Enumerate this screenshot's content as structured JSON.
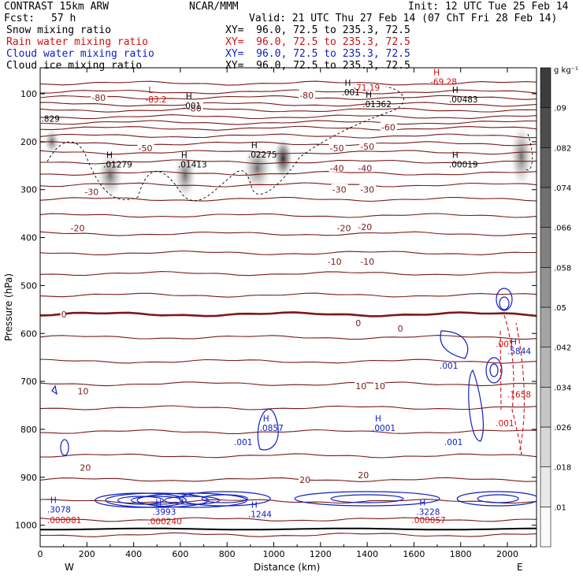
{
  "header": {
    "model": "CONTRAST 15km ARW",
    "fcst_label": "Fcst:",
    "fcst_value": "57 h",
    "org": "NCAR/MMM",
    "init": "Init: 12 UTC Tue 25 Feb 14",
    "valid": "Valid: 21 UTC Thu 27 Feb 14 (07 ChT Fri 28 Feb 14)"
  },
  "fields": [
    {
      "name": "Snow mixing ratio",
      "xy": "XY=  96.0, 72.5 to 235.3, 72.5",
      "color": "#000000"
    },
    {
      "name": "Rain water mixing ratio",
      "xy": "XY=  96.0, 72.5 to 235.3, 72.5",
      "color": "#d01010"
    },
    {
      "name": "Cloud water mixing ratio",
      "xy": "XY=  96.0, 72.5 to 235.3, 72.5",
      "color": "#1020c0"
    },
    {
      "name": "Cloud ice mixing ratio",
      "xy": "XY=  96.0, 72.5 to 235.3, 72.5",
      "color": "#000000"
    }
  ],
  "colors": {
    "temperature": "#7a1a1a",
    "rain": "#d01010",
    "cloud_water": "#1020c0",
    "ice": "#000000"
  },
  "chart_data": {
    "type": "heatmap",
    "xlabel": "Distance (km)",
    "ylabel": "Pressure (hPa)",
    "xlim": [
      0,
      2100
    ],
    "ylim": [
      1050,
      50
    ],
    "x_ticks": [
      0,
      200,
      400,
      600,
      800,
      1000,
      1200,
      1400,
      1600,
      1800,
      2000
    ],
    "y_ticks": [
      100,
      200,
      300,
      400,
      500,
      600,
      700,
      800,
      900,
      1000
    ],
    "x_end_labels": {
      "left": "W",
      "right": "E"
    },
    "colorbar": {
      "unit": "g kg⁻¹",
      "levels": [
        0.01,
        0.018,
        0.026,
        0.034,
        0.042,
        0.05,
        0.058,
        0.066,
        0.074,
        0.082,
        0.09
      ],
      "labels": [
        ".01",
        ".018",
        ".026",
        ".034",
        ".042",
        ".05",
        ".058",
        ".066",
        ".074",
        ".082",
        ".09"
      ]
    },
    "temperature_contours": [
      {
        "value": -80,
        "label": "-80",
        "x": 220,
        "p": 108
      },
      {
        "value": -80,
        "label": "-80",
        "x": 630,
        "p": 130
      },
      {
        "value": -80,
        "label": "-80",
        "x": 1110,
        "p": 103
      },
      {
        "value": -60,
        "label": "-60",
        "x": 1460,
        "p": 170
      },
      {
        "value": -50,
        "label": "-50",
        "x": 420,
        "p": 213
      },
      {
        "value": -50,
        "label": "-50",
        "x": 1240,
        "p": 213
      },
      {
        "value": -50,
        "label": "-50",
        "x": 1370,
        "p": 210
      },
      {
        "value": -40,
        "label": "-40",
        "x": 1240,
        "p": 255
      },
      {
        "value": -40,
        "label": "-40",
        "x": 1360,
        "p": 255
      },
      {
        "value": -30,
        "label": "-30",
        "x": 190,
        "p": 305
      },
      {
        "value": -30,
        "label": "-30",
        "x": 1250,
        "p": 300
      },
      {
        "value": -30,
        "label": "-30",
        "x": 1370,
        "p": 300
      },
      {
        "value": -20,
        "label": "-20",
        "x": 130,
        "p": 380
      },
      {
        "value": -20,
        "label": "-20",
        "x": 1270,
        "p": 380
      },
      {
        "value": -20,
        "label": "-20",
        "x": 1360,
        "p": 378
      },
      {
        "value": -10,
        "label": "-10",
        "x": 1230,
        "p": 450
      },
      {
        "value": -10,
        "label": "-10",
        "x": 1370,
        "p": 450
      },
      {
        "value": 0,
        "label": "0",
        "x": 90,
        "p": 560
      },
      {
        "value": 0,
        "label": "0",
        "x": 1350,
        "p": 578
      },
      {
        "value": 0,
        "label": "0",
        "x": 1530,
        "p": 590
      },
      {
        "value": 10,
        "label": "10",
        "x": 160,
        "p": 720
      },
      {
        "value": 10,
        "label": "10",
        "x": 1350,
        "p": 710
      },
      {
        "value": 10,
        "label": "10",
        "x": 1430,
        "p": 710
      },
      {
        "value": 20,
        "label": "20",
        "x": 170,
        "p": 880
      },
      {
        "value": 20,
        "label": "20",
        "x": 1110,
        "p": 905
      },
      {
        "value": 20,
        "label": "20",
        "x": 1360,
        "p": 895
      }
    ],
    "temperature_lines_p": [
      78,
      96,
      108,
      122,
      134,
      148,
      160,
      172,
      188,
      204,
      222,
      242,
      266,
      290,
      320,
      354,
      392,
      432,
      475,
      520,
      560,
      608,
      658,
      705,
      755,
      805,
      855,
      905,
      950,
      988,
      1020
    ],
    "highs_lows": [
      {
        "kind": "L",
        "value": "-83.2",
        "x": 450,
        "p": 115,
        "color": "#d01010"
      },
      {
        "kind": "",
        "value": "-71.19",
        "x": 1340,
        "p": 90,
        "color": "#d01010"
      },
      {
        "kind": "H",
        "value": "-69.28",
        "x": 1670,
        "p": 78,
        "color": "#d01010"
      },
      {
        "kind": "",
        "value": ".829",
        "x": 5,
        "p": 155,
        "color": "#000000"
      },
      {
        "kind": "H",
        "value": ".001",
        "x": 610,
        "p": 128,
        "color": "#000000"
      },
      {
        "kind": "H",
        "value": ".001",
        "x": 1290,
        "p": 100,
        "color": "#000000"
      },
      {
        "kind": "H",
        "value": ".01362",
        "x": 1380,
        "p": 125,
        "color": "#000000"
      },
      {
        "kind": "H",
        "value": ".00483",
        "x": 1750,
        "p": 115,
        "color": "#000000"
      },
      {
        "kind": "H",
        "value": ".01279",
        "x": 270,
        "p": 250,
        "color": "#000000"
      },
      {
        "kind": "H",
        "value": ".01413",
        "x": 590,
        "p": 250,
        "color": "#000000"
      },
      {
        "kind": "H",
        "value": ".02275",
        "x": 890,
        "p": 230,
        "color": "#000000"
      },
      {
        "kind": "H",
        "value": ".00019",
        "x": 1750,
        "p": 250,
        "color": "#000000"
      },
      {
        "kind": "H",
        "value": ".0857",
        "x": 940,
        "p": 800,
        "color": "#1020c0"
      },
      {
        "kind": "",
        "value": ".001",
        "x": 830,
        "p": 830,
        "color": "#1020c0"
      },
      {
        "kind": "H",
        "value": ".0001",
        "x": 1420,
        "p": 800,
        "color": "#1020c0"
      },
      {
        "kind": "",
        "value": ".001",
        "x": 1730,
        "p": 830,
        "color": "#1020c0"
      },
      {
        "kind": "",
        "value": ".001",
        "x": 1710,
        "p": 670,
        "color": "#1020c0"
      },
      {
        "kind": "",
        "value": ".001",
        "x": 1950,
        "p": 625,
        "color": "#d01010"
      },
      {
        "kind": "H",
        "value": ".5844",
        "x": 2000,
        "p": 640,
        "color": "#1020c0"
      },
      {
        "kind": "",
        "value": ".1658",
        "x": 2000,
        "p": 730,
        "color": "#d01010"
      },
      {
        "kind": "",
        "value": ".001",
        "x": 1950,
        "p": 790,
        "color": "#d01010"
      },
      {
        "kind": "H",
        "value": ".3078",
        "x": 30,
        "p": 970,
        "color": "#1020c0"
      },
      {
        "kind": "",
        "value": ".000081",
        "x": 30,
        "p": 992,
        "color": "#d01010"
      },
      {
        "kind": "H",
        "value": ".3993",
        "x": 480,
        "p": 975,
        "color": "#1020c0"
      },
      {
        "kind": "",
        "value": ".000240",
        "x": 460,
        "p": 995,
        "color": "#d01010"
      },
      {
        "kind": "H",
        "value": ".1244",
        "x": 890,
        "p": 980,
        "color": "#1020c0"
      },
      {
        "kind": "H",
        "value": ".3228",
        "x": 1610,
        "p": 975,
        "color": "#1020c0"
      },
      {
        "kind": "",
        "value": ".000057",
        "x": 1590,
        "p": 992,
        "color": "#d01010"
      }
    ]
  }
}
